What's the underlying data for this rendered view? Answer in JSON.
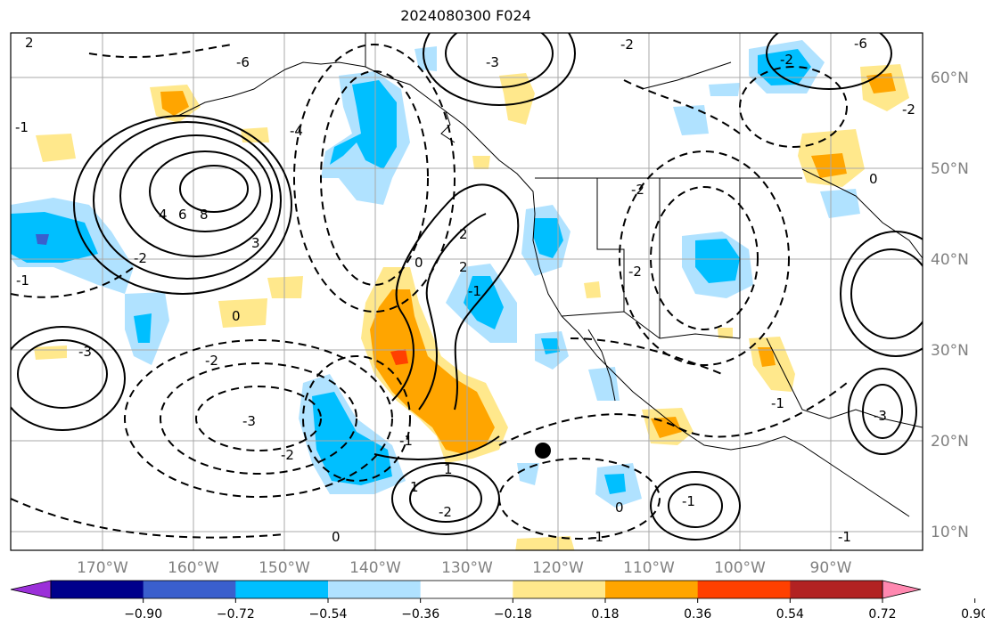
{
  "title": "2024080300 F024",
  "lon_labels": [
    "170°W",
    "160°W",
    "150°W",
    "140°W",
    "130°W",
    "120°W",
    "110°W",
    "100°W",
    "90°W"
  ],
  "lat_labels": [
    "60°N",
    "50°N",
    "40°N",
    "30°N",
    "20°N",
    "10°N"
  ],
  "colorbar": {
    "ticks": [
      "−0.90",
      "−0.72",
      "−0.54",
      "−0.36",
      "−0.18",
      "0.18",
      "0.36",
      "0.54",
      "0.72",
      "0.90"
    ],
    "colors": [
      "#9b30d9",
      "#00008b",
      "#3a5fcd",
      "#00bfff",
      "#b0e2ff",
      "#ffffff",
      "#ffe88c",
      "#ffa500",
      "#ff4000",
      "#b22222",
      "#ff88b0"
    ]
  },
  "contour_labels": [
    "2",
    "-2",
    "-6",
    "-2",
    "-3",
    "-1",
    "4",
    "6",
    "8",
    "3",
    "-4",
    "-3",
    "-2",
    "0",
    "2",
    "-2",
    "-1",
    "-2",
    "-3",
    "0",
    "-2",
    "2",
    "-1",
    "0",
    "-2",
    "1",
    "0",
    "-1",
    "0",
    "-1",
    "-2",
    "-1",
    "-6",
    "-2",
    "1",
    "-3",
    "-1",
    "-1"
  ],
  "marker": "storm-center-dot"
}
